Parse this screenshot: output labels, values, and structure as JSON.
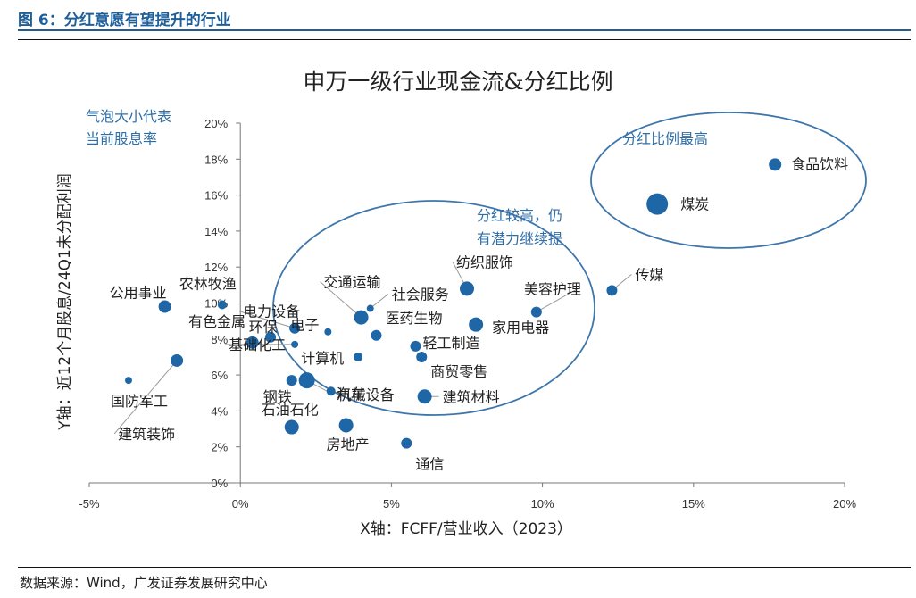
{
  "figure_title": "图 6：分红意愿有望提升的行业",
  "source": "数据来源：Wind，广发证券发展研究中心",
  "colors": {
    "accent": "#1f5f99",
    "bubble": "#1f66a6",
    "annotation": "#2e6fa8",
    "ellipse": "#3e76ab"
  },
  "chart_data": {
    "type": "scatter",
    "title": "申万一级行业现金流&分红比例",
    "xlabel": "X轴：FCFF/营业收入（2023）",
    "ylabel": "Y轴：近12个月股息/24Q1未分配利润",
    "x_ticks": [
      "-5%",
      "0%",
      "5%",
      "10%",
      "15%",
      "20%"
    ],
    "y_ticks": [
      "0%",
      "2%",
      "4%",
      "6%",
      "8%",
      "10%",
      "12%",
      "14%",
      "16%",
      "18%",
      "20%"
    ],
    "xlim": [
      -5,
      20
    ],
    "ylim": [
      0,
      20
    ],
    "grid": false,
    "bubble_size_note": "气泡大小代表当前股息率",
    "annotations": [
      "分红比例最高",
      "分红较高，仍有潜力继续提"
    ],
    "points": [
      {
        "name": "食品饮料",
        "x": 17.7,
        "y": 17.7,
        "size": 7
      },
      {
        "name": "煤炭",
        "x": 13.8,
        "y": 15.5,
        "size": 12
      },
      {
        "name": "传媒",
        "x": 12.3,
        "y": 10.7,
        "size": 6
      },
      {
        "name": "美容护理",
        "x": 9.8,
        "y": 9.5,
        "size": 6
      },
      {
        "name": "纺织服饰",
        "x": 7.5,
        "y": 10.8,
        "size": 8
      },
      {
        "name": "家用电器",
        "x": 7.8,
        "y": 8.8,
        "size": 8
      },
      {
        "name": "医药生物",
        "x": 4.5,
        "y": 8.2,
        "size": 6
      },
      {
        "name": "社会服务",
        "x": 4.3,
        "y": 9.7,
        "size": 4
      },
      {
        "name": "交通运输",
        "x": 4.0,
        "y": 9.2,
        "size": 8
      },
      {
        "name": "电子",
        "x": 2.9,
        "y": 8.4,
        "size": 4
      },
      {
        "name": "轻工制造",
        "x": 5.8,
        "y": 7.6,
        "size": 6
      },
      {
        "name": "商贸零售",
        "x": 6.0,
        "y": 7.0,
        "size": 6
      },
      {
        "name": "计算机",
        "x": 3.9,
        "y": 7.0,
        "size": 5
      },
      {
        "name": "建筑材料",
        "x": 6.1,
        "y": 4.8,
        "size": 8
      },
      {
        "name": "汽车",
        "x": 3.0,
        "y": 5.1,
        "size": 5
      },
      {
        "name": "机械设备",
        "x": 2.2,
        "y": 5.7,
        "size": 9
      },
      {
        "name": "钢铁",
        "x": 1.7,
        "y": 5.7,
        "size": 6
      },
      {
        "name": "基础化工",
        "x": 1.8,
        "y": 7.7,
        "size": 4
      },
      {
        "name": "电力设备",
        "x": 1.8,
        "y": 8.6,
        "size": 6
      },
      {
        "name": "有色金属",
        "x": 1.0,
        "y": 8.1,
        "size": 6
      },
      {
        "name": "石油石化",
        "x": 1.7,
        "y": 3.1,
        "size": 8
      },
      {
        "name": "房地产",
        "x": 3.5,
        "y": 3.2,
        "size": 8
      },
      {
        "name": "通信",
        "x": 5.5,
        "y": 2.2,
        "size": 6
      },
      {
        "name": "环保",
        "x": 0.4,
        "y": 7.8,
        "size": 7
      },
      {
        "name": "建筑装饰",
        "x": -2.1,
        "y": 6.8,
        "size": 7
      },
      {
        "name": "国防军工",
        "x": -3.7,
        "y": 5.7,
        "size": 4
      },
      {
        "name": "公用事业",
        "x": -2.5,
        "y": 9.8,
        "size": 7
      },
      {
        "name": "农林牧渔",
        "x": -0.6,
        "y": 9.9,
        "size": 5
      }
    ]
  }
}
